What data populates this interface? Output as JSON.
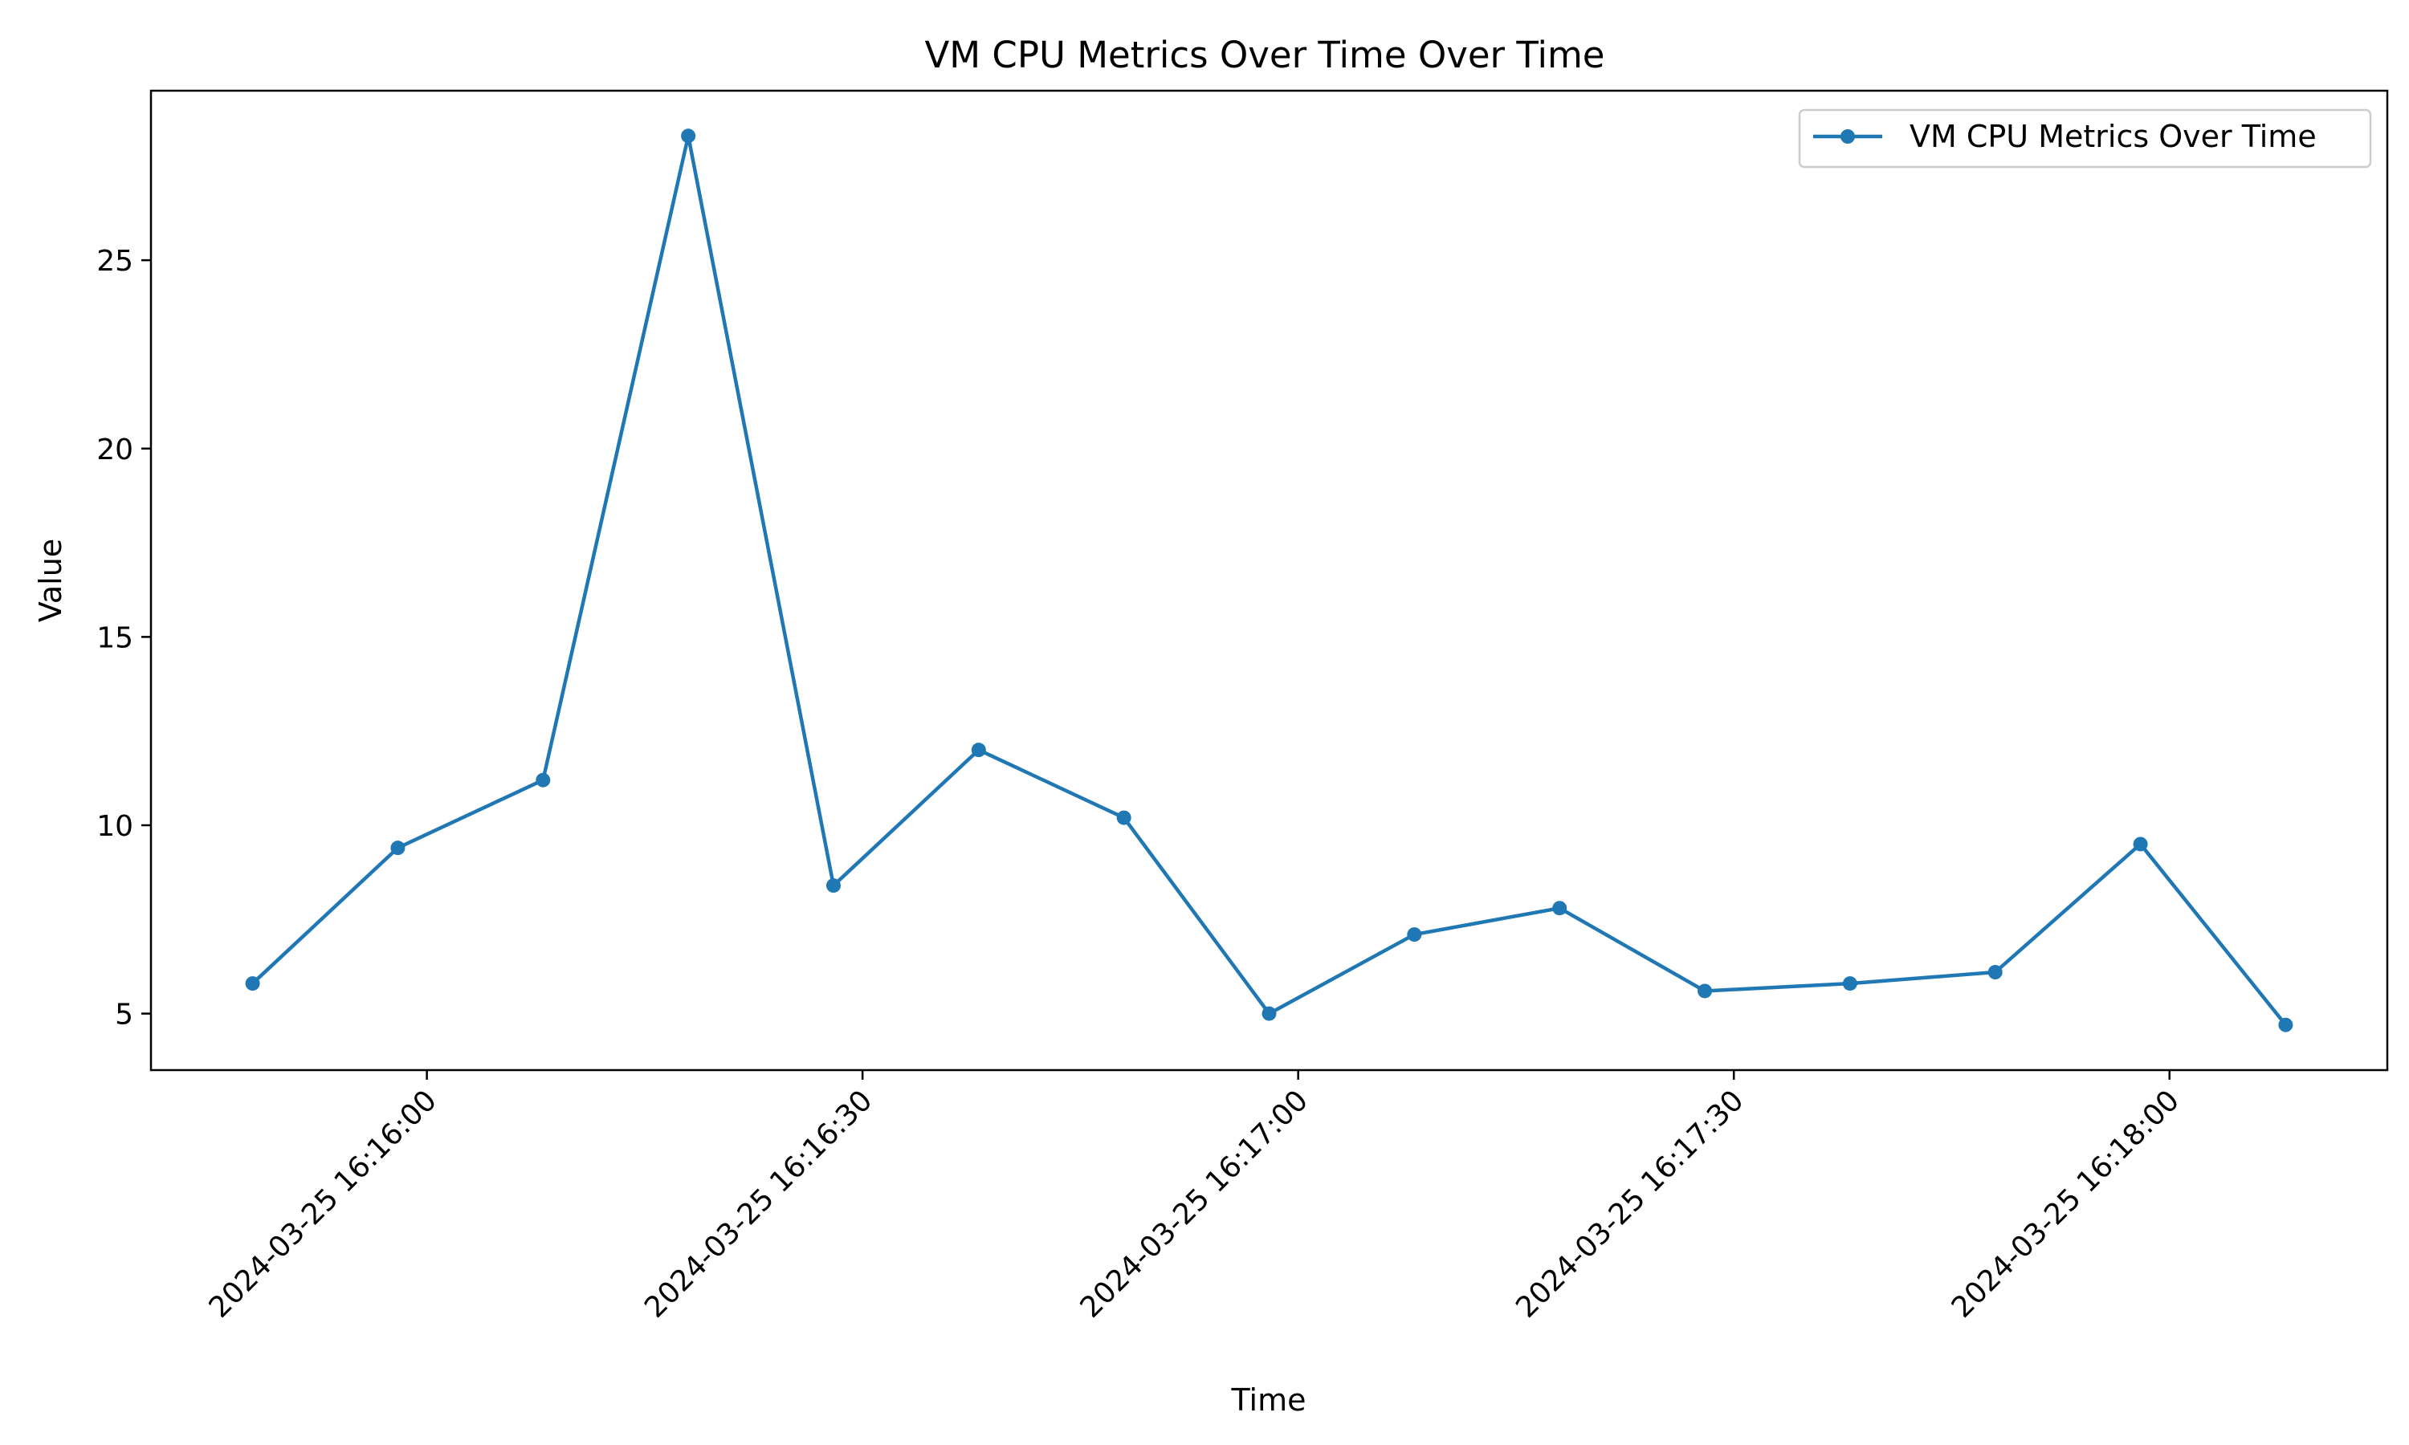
{
  "chart_data": {
    "type": "line",
    "title": "VM CPU Metrics Over Time Over Time",
    "xlabel": "Time",
    "ylabel": "Value",
    "x": [
      "2024-03-25 16:15:48",
      "2024-03-25 16:15:58",
      "2024-03-25 16:16:08",
      "2024-03-25 16:16:18",
      "2024-03-25 16:16:28",
      "2024-03-25 16:16:38",
      "2024-03-25 16:16:48",
      "2024-03-25 16:16:58",
      "2024-03-25 16:17:08",
      "2024-03-25 16:17:18",
      "2024-03-25 16:17:28",
      "2024-03-25 16:17:38",
      "2024-03-25 16:17:48",
      "2024-03-25 16:17:58",
      "2024-03-25 16:18:08"
    ],
    "series": [
      {
        "name": "VM CPU Metrics Over Time",
        "color": "#1f77b4",
        "marker": "circle",
        "values": [
          5.8,
          9.4,
          11.2,
          28.3,
          8.4,
          12.0,
          10.2,
          5.0,
          7.1,
          7.8,
          5.6,
          5.8,
          6.1,
          9.5,
          4.7
        ]
      }
    ],
    "xlim": [
      "2024-03-25 16:15:41",
      "2024-03-25 16:18:15"
    ],
    "ylim": [
      3.5,
      29.5
    ],
    "x_ticks": [
      "2024-03-25 16:16:00",
      "2024-03-25 16:16:30",
      "2024-03-25 16:17:00",
      "2024-03-25 16:17:30",
      "2024-03-25 16:18:00"
    ],
    "y_ticks": [
      5,
      10,
      15,
      20,
      25
    ],
    "grid": false,
    "legend_position": "top-right"
  }
}
